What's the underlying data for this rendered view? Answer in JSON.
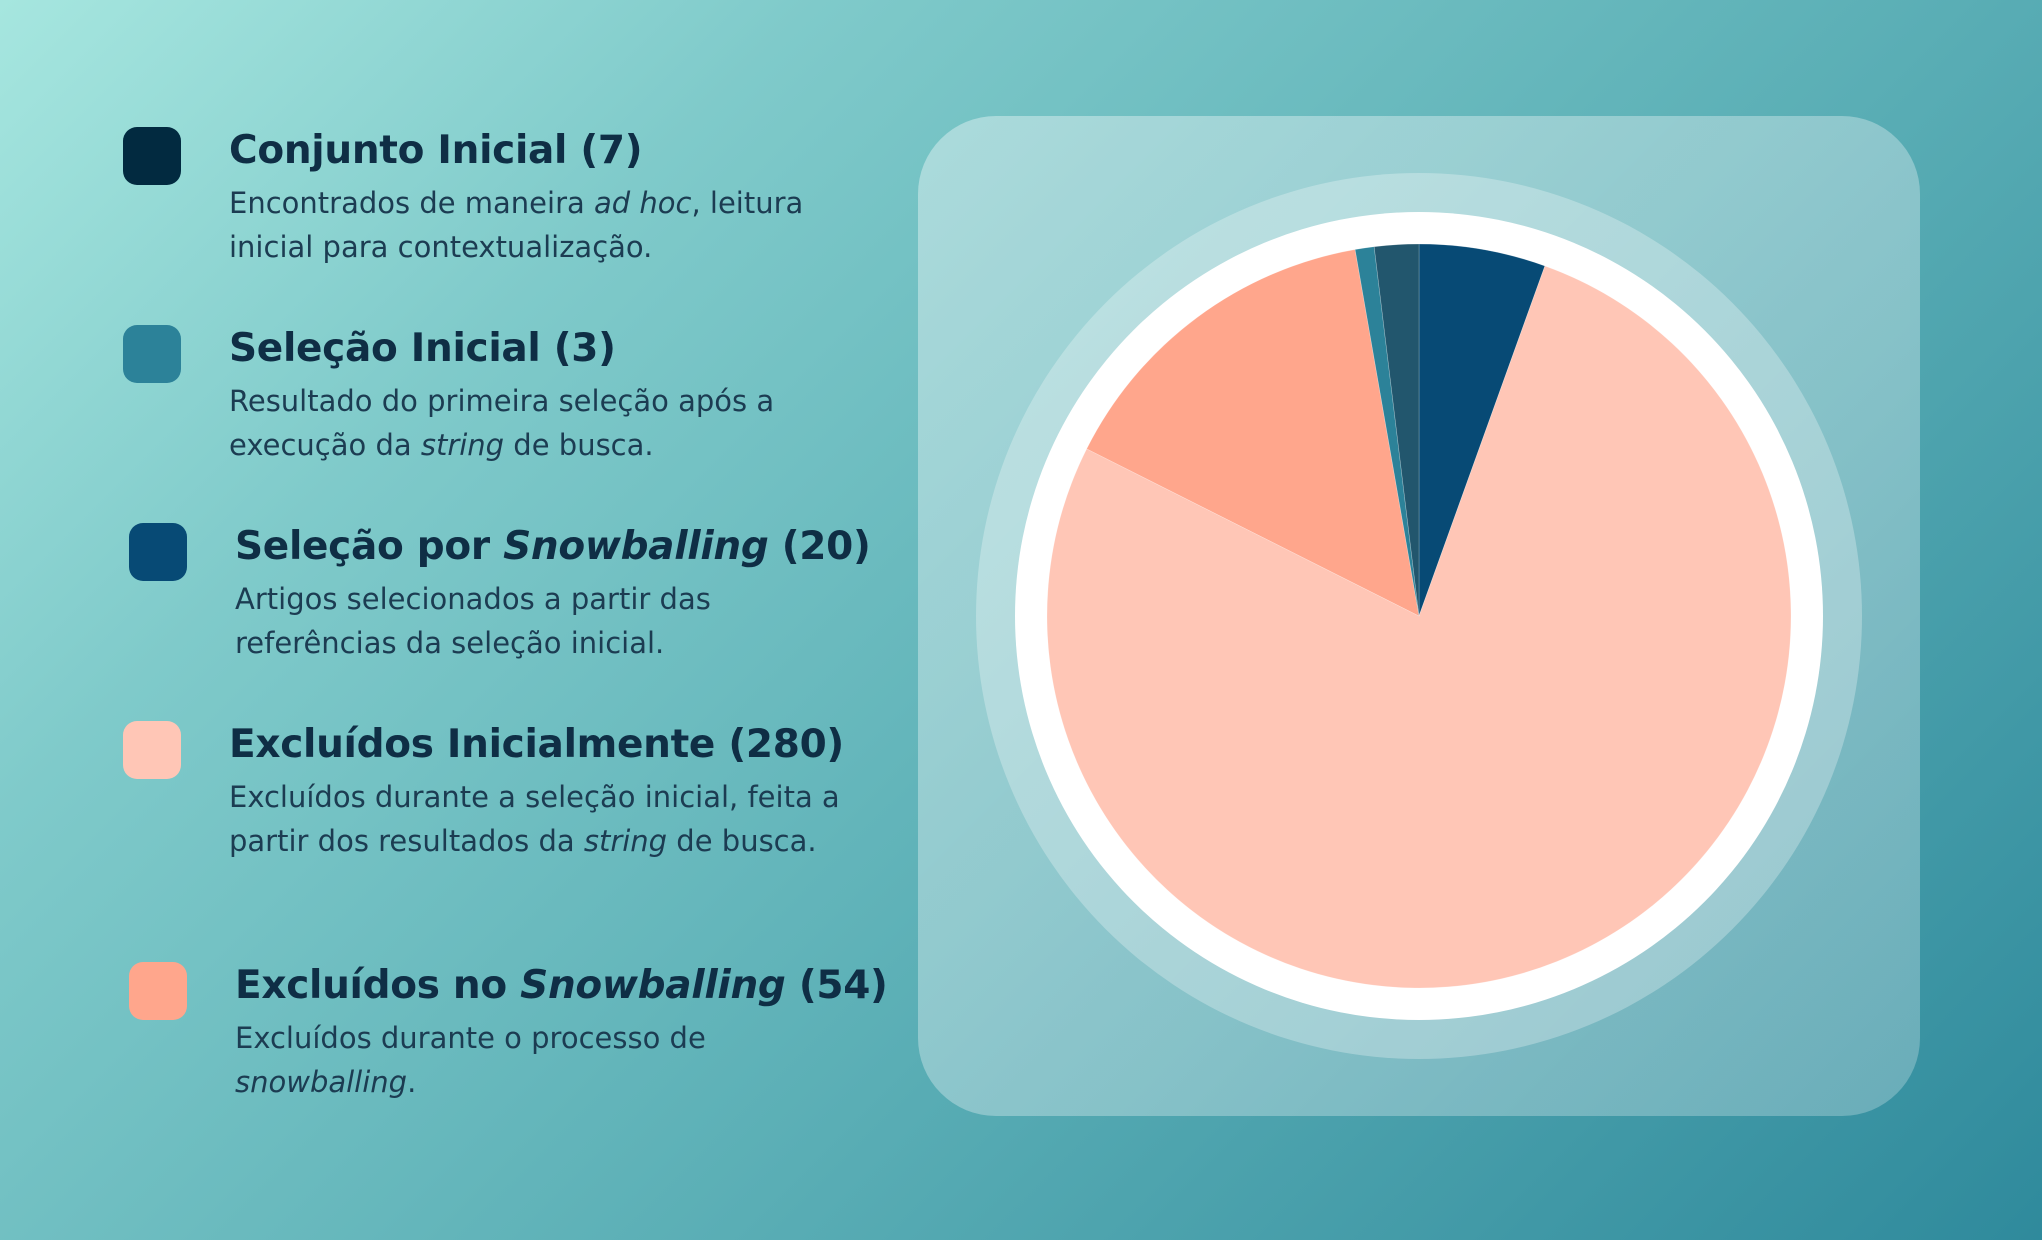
{
  "legend": {
    "items": [
      {
        "title_pre": "Conjunto Inicial",
        "title_em": "",
        "title_post": " (7)",
        "desc_parts": [
          "Encontrados de maneira ",
          "ad hoc",
          ", leitura inicial para contextualização."
        ],
        "color": "#022a40"
      },
      {
        "title_pre": "Seleção Inicial",
        "title_em": "",
        "title_post": " (3)",
        "desc_parts": [
          "Resultado do primeira seleção após a execução da ",
          "string",
          " de busca."
        ],
        "color": "#2c8299"
      },
      {
        "title_pre": "Seleção por ",
        "title_em": "Snowballing",
        "title_post": " (20)",
        "desc_parts": [
          "Artigos selecionados a partir das referências da seleção inicial.",
          "",
          ""
        ],
        "color": "#074a75"
      },
      {
        "title_pre": "Excluídos Inicialmente",
        "title_em": "",
        "title_post": " (280)",
        "desc_parts": [
          "Excluídos durante a seleção inicial, feita a partir dos resultados da ",
          "string",
          " de busca."
        ],
        "color": "#ffc6b6"
      },
      {
        "title_pre": "Excluídos no ",
        "title_em": "Snowballing",
        "title_post": " (54)",
        "desc_parts": [
          "Excluídos durante o processo de ",
          "snowballing",
          "."
        ],
        "color": "#ffa68c"
      }
    ]
  },
  "chart_data": {
    "type": "pie",
    "title": "",
    "start_angle_deg": 0,
    "direction": "clockwise",
    "slices": [
      {
        "label": "Seleção por Snowballing",
        "value": 20,
        "color": "#074a75"
      },
      {
        "label": "Excluídos Inicialmente",
        "value": 280,
        "color": "#ffc6b6"
      },
      {
        "label": "Excluídos no Snowballing",
        "value": 54,
        "color": "#ffa68c"
      },
      {
        "label": "Seleção Inicial",
        "value": 3,
        "color": "#2c8299"
      },
      {
        "label": "Conjunto Inicial",
        "value": 7,
        "color": "#22566d"
      }
    ],
    "legend_position": "left"
  }
}
